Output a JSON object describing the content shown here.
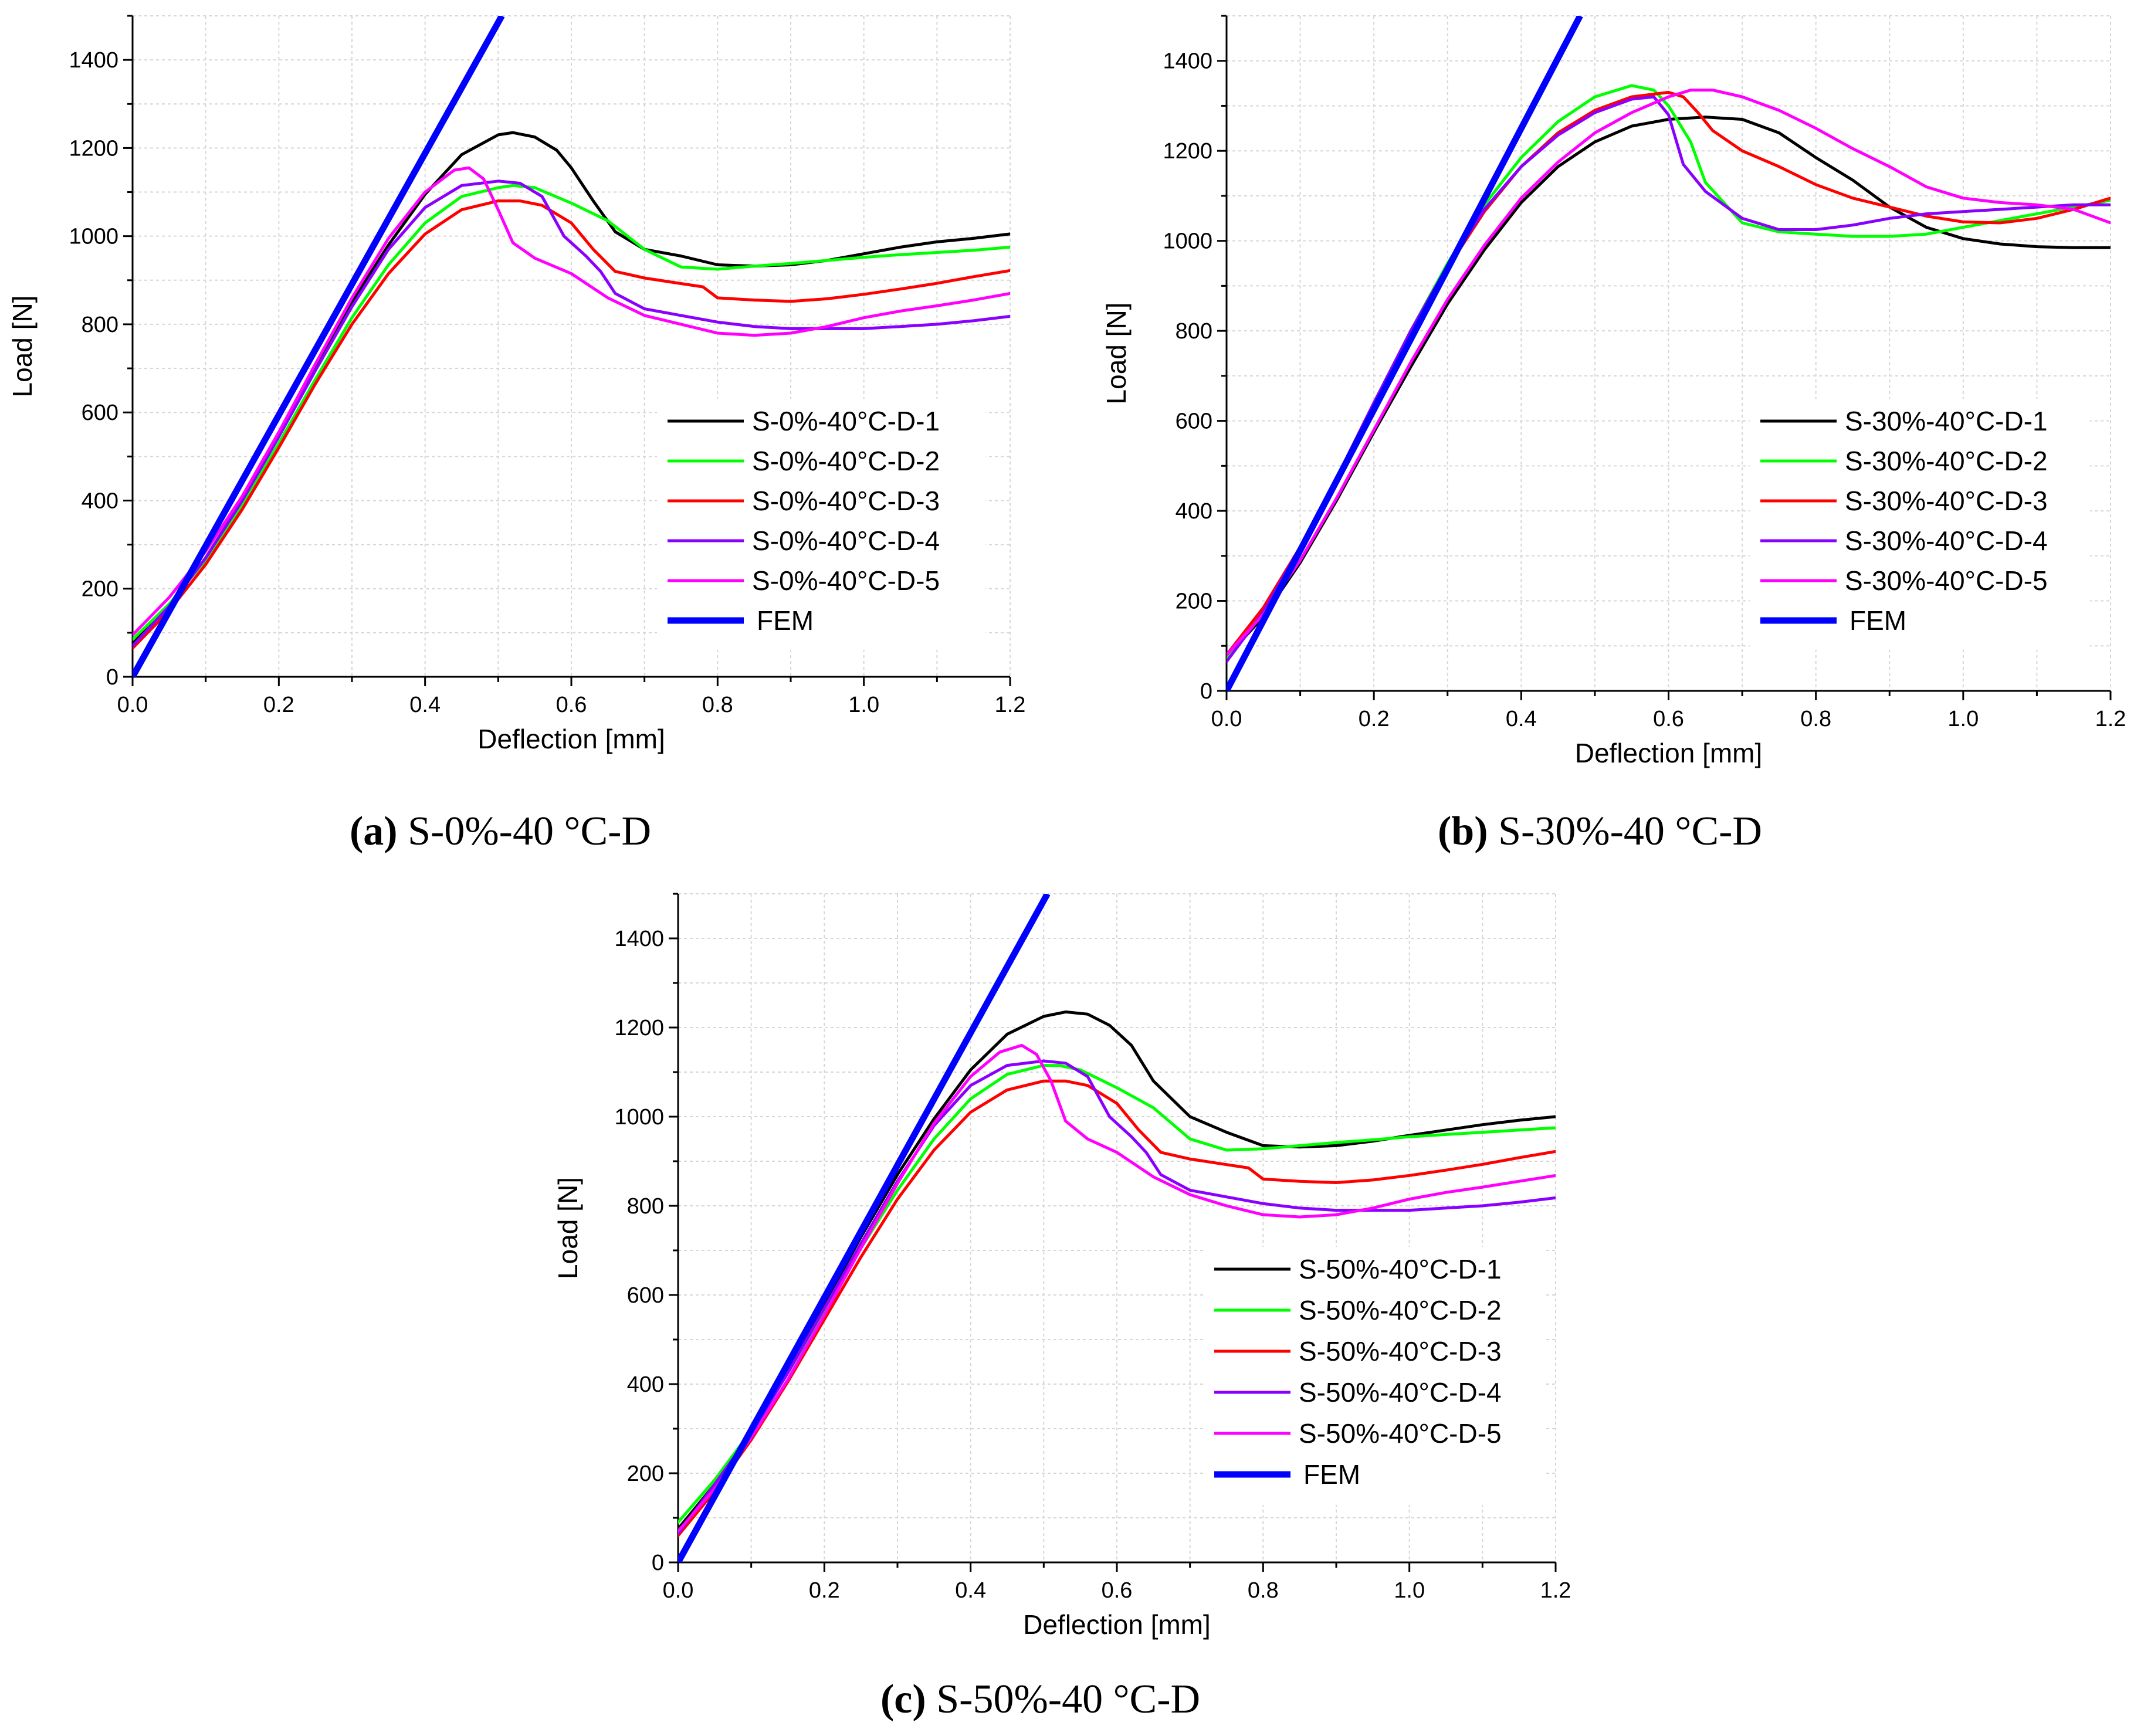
{
  "chart_data": [
    {
      "type": "line",
      "panel": "a",
      "caption": {
        "letter": "(a)",
        "text": " S-0%-40 °C-D"
      },
      "xlabel": "Deflection [mm]",
      "ylabel": "Load [N]",
      "xlim": [
        0,
        1.2
      ],
      "ylim": [
        0,
        1500
      ],
      "xticks": [
        0.0,
        0.2,
        0.4,
        0.6,
        0.8,
        1.0,
        1.2
      ],
      "xtick_labels": [
        "0.0",
        "0.2",
        "0.4",
        "0.6",
        "0.8",
        "1.0",
        "1.2"
      ],
      "yticks": [
        0,
        200,
        400,
        600,
        800,
        1000,
        1200,
        1400
      ],
      "ytick_labels": [
        "0",
        "200",
        "400",
        "600",
        "800",
        "1000",
        "1200",
        "1400"
      ],
      "grid": true,
      "legend_position": "bottom-right",
      "series": [
        {
          "name": "S-0%-40°C-D-1",
          "color": "#000000",
          "x": [
            0,
            0.05,
            0.1,
            0.15,
            0.2,
            0.25,
            0.3,
            0.35,
            0.4,
            0.45,
            0.5,
            0.52,
            0.55,
            0.58,
            0.6,
            0.63,
            0.66,
            0.7,
            0.75,
            0.8,
            0.85,
            0.9,
            0.95,
            1.0,
            1.05,
            1.1,
            1.15,
            1.2
          ],
          "y": [
            75,
            160,
            270,
            400,
            545,
            700,
            850,
            980,
            1095,
            1185,
            1230,
            1235,
            1225,
            1195,
            1155,
            1080,
            1010,
            970,
            955,
            935,
            932,
            935,
            945,
            960,
            975,
            987,
            995,
            1005
          ]
        },
        {
          "name": "S-0%-40°C-D-2",
          "color": "#00ff00",
          "x": [
            0,
            0.05,
            0.1,
            0.15,
            0.2,
            0.25,
            0.3,
            0.35,
            0.4,
            0.45,
            0.5,
            0.52,
            0.55,
            0.6,
            0.65,
            0.7,
            0.75,
            0.8,
            0.85,
            0.9,
            0.95,
            1.0,
            1.05,
            1.1,
            1.15,
            1.2
          ],
          "y": [
            85,
            165,
            265,
            390,
            530,
            675,
            815,
            935,
            1030,
            1090,
            1110,
            1115,
            1110,
            1075,
            1035,
            970,
            930,
            925,
            932,
            938,
            945,
            952,
            958,
            963,
            968,
            975
          ]
        },
        {
          "name": "S-0%-40°C-D-3",
          "color": "#ff0000",
          "x": [
            0,
            0.05,
            0.1,
            0.15,
            0.2,
            0.25,
            0.3,
            0.35,
            0.4,
            0.45,
            0.5,
            0.53,
            0.56,
            0.6,
            0.63,
            0.66,
            0.7,
            0.74,
            0.78,
            0.8,
            0.85,
            0.9,
            0.95,
            1.0,
            1.05,
            1.1,
            1.15,
            1.2
          ],
          "y": [
            65,
            150,
            255,
            380,
            520,
            665,
            800,
            915,
            1005,
            1060,
            1080,
            1080,
            1070,
            1030,
            970,
            920,
            905,
            895,
            885,
            860,
            855,
            852,
            858,
            868,
            880,
            893,
            908,
            922
          ]
        },
        {
          "name": "S-0%-40°C-D-4",
          "color": "#8a00ff",
          "x": [
            0,
            0.05,
            0.1,
            0.15,
            0.2,
            0.25,
            0.3,
            0.35,
            0.4,
            0.45,
            0.5,
            0.53,
            0.56,
            0.59,
            0.62,
            0.64,
            0.66,
            0.7,
            0.75,
            0.8,
            0.85,
            0.9,
            0.95,
            1.0,
            1.05,
            1.1,
            1.15,
            1.2
          ],
          "y": [
            70,
            160,
            270,
            400,
            545,
            695,
            840,
            970,
            1065,
            1115,
            1125,
            1120,
            1090,
            1000,
            955,
            920,
            870,
            835,
            820,
            805,
            795,
            790,
            790,
            790,
            795,
            800,
            808,
            818
          ]
        },
        {
          "name": "S-0%-40°C-D-5",
          "color": "#ff00ff",
          "x": [
            0,
            0.05,
            0.1,
            0.15,
            0.2,
            0.25,
            0.3,
            0.35,
            0.4,
            0.44,
            0.46,
            0.48,
            0.5,
            0.52,
            0.55,
            0.6,
            0.65,
            0.7,
            0.75,
            0.8,
            0.85,
            0.9,
            0.95,
            1.0,
            1.05,
            1.1,
            1.15,
            1.2
          ],
          "y": [
            95,
            180,
            285,
            410,
            555,
            710,
            860,
            995,
            1100,
            1150,
            1155,
            1130,
            1060,
            985,
            950,
            915,
            860,
            820,
            800,
            780,
            775,
            780,
            795,
            815,
            830,
            842,
            855,
            870
          ]
        },
        {
          "name": "FEM",
          "color": "#0000ff",
          "x": [
            0,
            0.505
          ],
          "y": [
            0,
            1500
          ],
          "fem": true
        }
      ]
    },
    {
      "type": "line",
      "panel": "b",
      "caption": {
        "letter": "(b)",
        "text": " S-30%-40 °C-D"
      },
      "xlabel": "Deflection [mm]",
      "ylabel": "Load [N]",
      "xlim": [
        0,
        1.2
      ],
      "ylim": [
        0,
        1500
      ],
      "xticks": [
        0.0,
        0.2,
        0.4,
        0.6,
        0.8,
        1.0,
        1.2
      ],
      "xtick_labels": [
        "0.0",
        "0.2",
        "0.4",
        "0.6",
        "0.8",
        "1.0",
        "1.2"
      ],
      "yticks": [
        0,
        200,
        400,
        600,
        800,
        1000,
        1200,
        1400
      ],
      "ytick_labels": [
        "0",
        "200",
        "400",
        "600",
        "800",
        "1000",
        "1200",
        "1400"
      ],
      "grid": true,
      "legend_position": "bottom-right",
      "series": [
        {
          "name": "S-30%-40°C-D-1",
          "color": "#000000",
          "x": [
            0,
            0.05,
            0.1,
            0.15,
            0.2,
            0.25,
            0.3,
            0.35,
            0.4,
            0.45,
            0.5,
            0.55,
            0.6,
            0.65,
            0.7,
            0.75,
            0.8,
            0.85,
            0.9,
            0.95,
            1.0,
            1.05,
            1.1,
            1.15,
            1.2
          ],
          "y": [
            75,
            165,
            285,
            425,
            575,
            720,
            860,
            980,
            1085,
            1165,
            1220,
            1255,
            1270,
            1275,
            1270,
            1240,
            1185,
            1135,
            1075,
            1030,
            1005,
            993,
            987,
            985,
            985
          ]
        },
        {
          "name": "S-30%-40°C-D-2",
          "color": "#00ff00",
          "x": [
            0,
            0.05,
            0.1,
            0.15,
            0.2,
            0.25,
            0.3,
            0.35,
            0.4,
            0.45,
            0.5,
            0.55,
            0.58,
            0.6,
            0.63,
            0.65,
            0.7,
            0.75,
            0.8,
            0.85,
            0.9,
            0.95,
            1.0,
            1.05,
            1.1,
            1.15,
            1.2
          ],
          "y": [
            70,
            180,
            320,
            475,
            640,
            800,
            950,
            1080,
            1185,
            1265,
            1320,
            1345,
            1335,
            1300,
            1220,
            1130,
            1040,
            1020,
            1015,
            1010,
            1010,
            1015,
            1030,
            1045,
            1060,
            1075,
            1090
          ]
        },
        {
          "name": "S-30%-40°C-D-3",
          "color": "#ff0000",
          "x": [
            0,
            0.05,
            0.1,
            0.15,
            0.2,
            0.25,
            0.3,
            0.35,
            0.4,
            0.45,
            0.5,
            0.55,
            0.6,
            0.62,
            0.64,
            0.66,
            0.7,
            0.75,
            0.8,
            0.85,
            0.9,
            0.95,
            1.0,
            1.05,
            1.1,
            1.15,
            1.2
          ],
          "y": [
            80,
            185,
            320,
            475,
            640,
            795,
            940,
            1065,
            1165,
            1240,
            1290,
            1320,
            1330,
            1320,
            1285,
            1245,
            1200,
            1165,
            1125,
            1095,
            1075,
            1055,
            1042,
            1040,
            1050,
            1070,
            1095
          ]
        },
        {
          "name": "S-30%-40°C-D-4",
          "color": "#8a00ff",
          "x": [
            0,
            0.05,
            0.1,
            0.15,
            0.2,
            0.25,
            0.3,
            0.35,
            0.4,
            0.45,
            0.5,
            0.55,
            0.58,
            0.6,
            0.62,
            0.65,
            0.7,
            0.75,
            0.8,
            0.85,
            0.9,
            0.95,
            1.0,
            1.05,
            1.1,
            1.15,
            1.2
          ],
          "y": [
            65,
            175,
            320,
            475,
            640,
            800,
            945,
            1070,
            1165,
            1235,
            1285,
            1315,
            1320,
            1280,
            1170,
            1110,
            1050,
            1025,
            1025,
            1035,
            1050,
            1060,
            1065,
            1070,
            1075,
            1080,
            1080
          ]
        },
        {
          "name": "S-30%-40°C-D-5",
          "color": "#ff00ff",
          "x": [
            0,
            0.05,
            0.1,
            0.15,
            0.2,
            0.25,
            0.3,
            0.35,
            0.4,
            0.45,
            0.5,
            0.55,
            0.6,
            0.63,
            0.66,
            0.7,
            0.75,
            0.8,
            0.85,
            0.9,
            0.95,
            1.0,
            1.05,
            1.1,
            1.15,
            1.2
          ],
          "y": [
            80,
            170,
            290,
            430,
            580,
            730,
            870,
            990,
            1095,
            1175,
            1240,
            1285,
            1320,
            1335,
            1335,
            1320,
            1290,
            1250,
            1205,
            1165,
            1120,
            1095,
            1085,
            1080,
            1070,
            1040
          ]
        },
        {
          "name": "FEM",
          "color": "#0000ff",
          "x": [
            0,
            0.48
          ],
          "y": [
            0,
            1500
          ],
          "fem": true
        }
      ]
    },
    {
      "type": "line",
      "panel": "c",
      "caption": {
        "letter": "(c)",
        "text": " S-50%-40 °C-D"
      },
      "xlabel": "Deflection [mm]",
      "ylabel": "Load [N]",
      "xlim": [
        0,
        1.2
      ],
      "ylim": [
        0,
        1500
      ],
      "xticks": [
        0.0,
        0.2,
        0.4,
        0.6,
        0.8,
        1.0,
        1.2
      ],
      "xtick_labels": [
        "0.0",
        "0.2",
        "0.4",
        "0.6",
        "0.8",
        "1.0",
        "1.2"
      ],
      "yticks": [
        0,
        200,
        400,
        600,
        800,
        1000,
        1200,
        1400
      ],
      "ytick_labels": [
        "0",
        "200",
        "400",
        "600",
        "800",
        "1000",
        "1200",
        "1400"
      ],
      "grid": true,
      "legend_position": "bottom-right",
      "series": [
        {
          "name": "S-50%-40°C-D-1",
          "color": "#000000",
          "x": [
            0,
            0.05,
            0.1,
            0.15,
            0.2,
            0.25,
            0.3,
            0.35,
            0.4,
            0.45,
            0.5,
            0.53,
            0.56,
            0.59,
            0.62,
            0.65,
            0.7,
            0.75,
            0.8,
            0.85,
            0.9,
            0.95,
            1.0,
            1.05,
            1.1,
            1.15,
            1.2
          ],
          "y": [
            75,
            175,
            290,
            430,
            580,
            730,
            870,
            995,
            1105,
            1185,
            1225,
            1235,
            1230,
            1205,
            1160,
            1080,
            1000,
            965,
            935,
            932,
            935,
            945,
            958,
            970,
            982,
            992,
            1000
          ]
        },
        {
          "name": "S-50%-40°C-D-2",
          "color": "#00ff00",
          "x": [
            0,
            0.05,
            0.1,
            0.15,
            0.2,
            0.25,
            0.3,
            0.35,
            0.4,
            0.45,
            0.5,
            0.52,
            0.55,
            0.6,
            0.65,
            0.7,
            0.75,
            0.8,
            0.85,
            0.9,
            0.95,
            1.0,
            1.05,
            1.1,
            1.15,
            1.2
          ],
          "y": [
            90,
            185,
            295,
            425,
            565,
            705,
            835,
            950,
            1040,
            1095,
            1115,
            1115,
            1105,
            1065,
            1020,
            950,
            925,
            928,
            935,
            942,
            948,
            955,
            960,
            965,
            970,
            975
          ]
        },
        {
          "name": "S-50%-40°C-D-3",
          "color": "#ff0000",
          "x": [
            0,
            0.05,
            0.1,
            0.15,
            0.2,
            0.25,
            0.3,
            0.35,
            0.4,
            0.45,
            0.5,
            0.53,
            0.56,
            0.6,
            0.63,
            0.66,
            0.7,
            0.74,
            0.78,
            0.8,
            0.85,
            0.9,
            0.95,
            1.0,
            1.05,
            1.1,
            1.15,
            1.2
          ],
          "y": [
            60,
            160,
            275,
            405,
            545,
            685,
            815,
            925,
            1010,
            1060,
            1080,
            1080,
            1070,
            1030,
            970,
            920,
            905,
            895,
            885,
            860,
            855,
            852,
            858,
            868,
            880,
            893,
            908,
            922
          ]
        },
        {
          "name": "S-50%-40°C-D-4",
          "color": "#8a00ff",
          "x": [
            0,
            0.05,
            0.1,
            0.15,
            0.2,
            0.25,
            0.3,
            0.35,
            0.4,
            0.45,
            0.5,
            0.53,
            0.56,
            0.59,
            0.62,
            0.64,
            0.66,
            0.7,
            0.75,
            0.8,
            0.85,
            0.9,
            0.95,
            1.0,
            1.05,
            1.1,
            1.15,
            1.2
          ],
          "y": [
            65,
            175,
            290,
            425,
            570,
            715,
            855,
            980,
            1070,
            1115,
            1125,
            1120,
            1090,
            1000,
            955,
            920,
            870,
            835,
            820,
            805,
            795,
            790,
            790,
            790,
            795,
            800,
            808,
            818
          ]
        },
        {
          "name": "S-50%-40°C-D-5",
          "color": "#ff00ff",
          "x": [
            0,
            0.05,
            0.1,
            0.15,
            0.2,
            0.25,
            0.3,
            0.35,
            0.4,
            0.44,
            0.47,
            0.49,
            0.51,
            0.53,
            0.56,
            0.6,
            0.65,
            0.7,
            0.75,
            0.8,
            0.85,
            0.9,
            0.95,
            1.0,
            1.05,
            1.1,
            1.15,
            1.2
          ],
          "y": [
            70,
            165,
            280,
            410,
            555,
            705,
            850,
            985,
            1090,
            1145,
            1160,
            1140,
            1080,
            990,
            950,
            920,
            865,
            825,
            800,
            780,
            775,
            780,
            795,
            815,
            830,
            842,
            855,
            868
          ]
        },
        {
          "name": "FEM",
          "color": "#0000ff",
          "x": [
            0,
            0.505
          ],
          "y": [
            0,
            1500
          ],
          "fem": true
        }
      ]
    }
  ]
}
